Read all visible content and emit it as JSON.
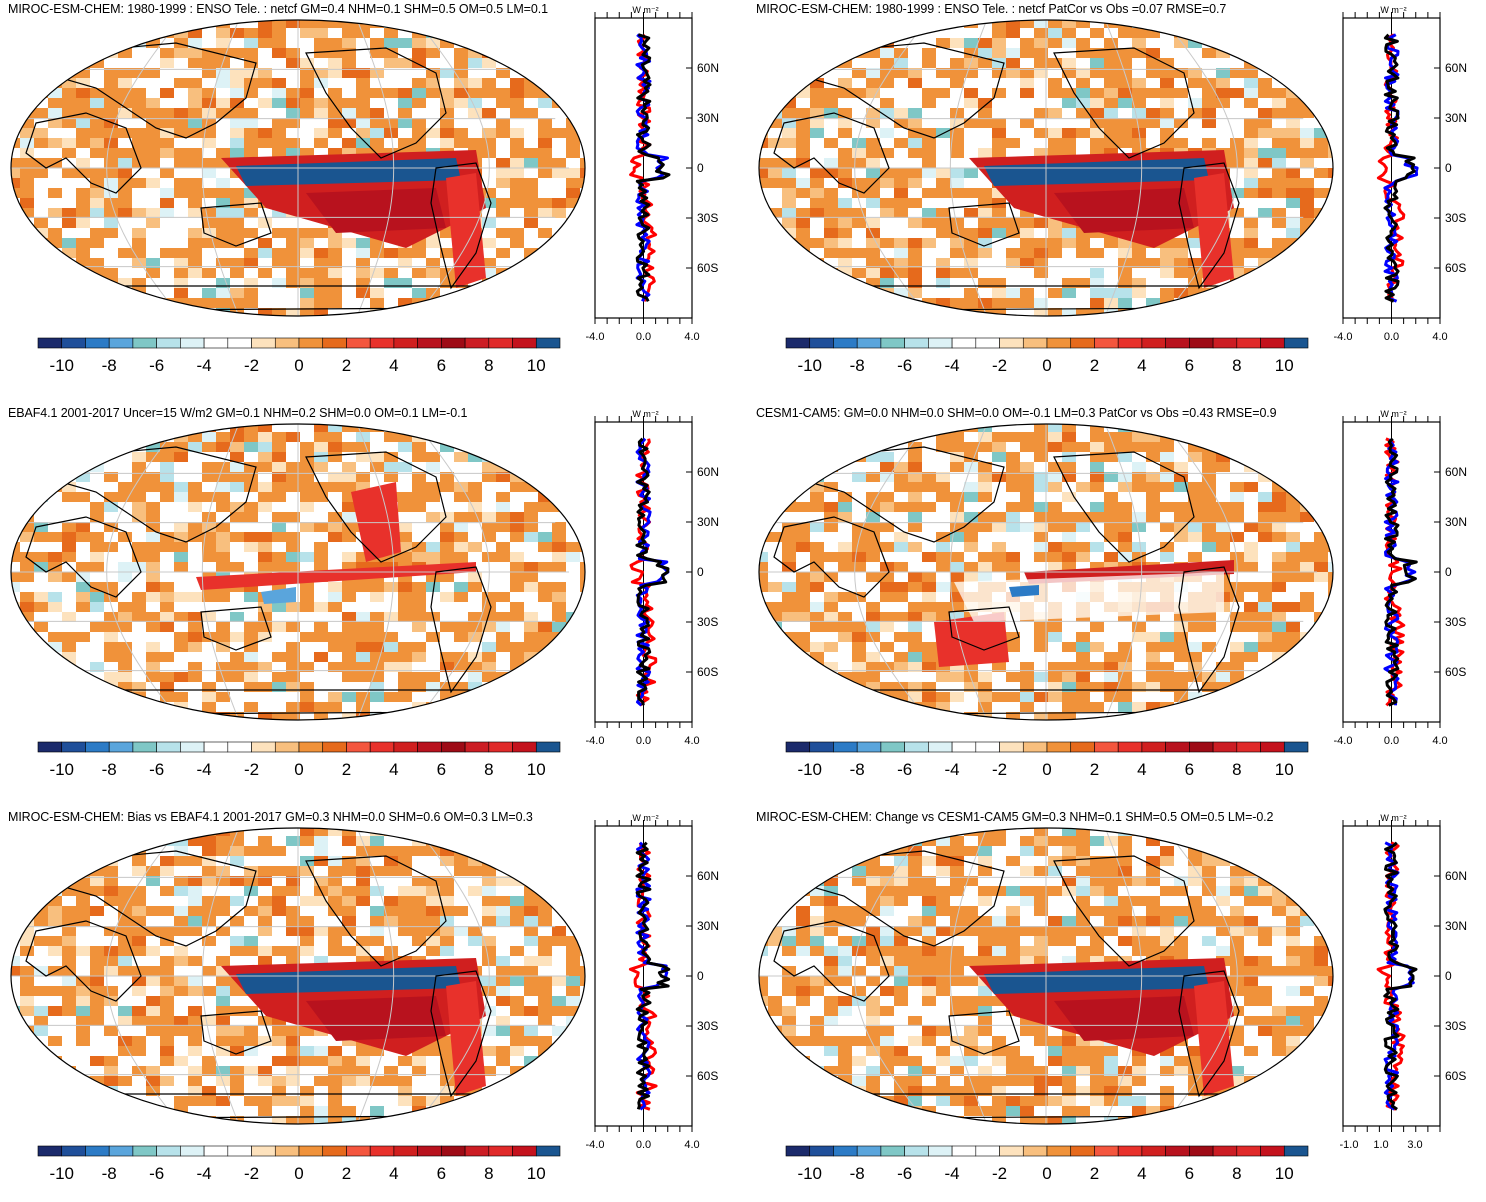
{
  "colorbar": {
    "labels": [
      "-10",
      "-8",
      "-6",
      "-4",
      "-2",
      "0",
      "2",
      "4",
      "6",
      "8",
      "10"
    ],
    "colors": [
      "#1b2a6b",
      "#1f4f9a",
      "#2c7bc6",
      "#5aa5dc",
      "#7fc7c6",
      "#b7e2ea",
      "#ddf2f6",
      "#ffffff",
      "#ffffff",
      "#fde2bd",
      "#f8bf7e",
      "#f0923a",
      "#e66a1c",
      "#f4563e",
      "#e8312b",
      "#d01f1f",
      "#b8121e",
      "#9e0b16",
      "#cc1d24",
      "#e02a2a",
      "#c4121d",
      "#1a5590"
    ]
  },
  "profile": {
    "unit": "W m⁻²",
    "lat_labels": [
      "60N",
      "30N",
      "0",
      "30S",
      "60S"
    ],
    "x_ticks_default": [
      "-4.0",
      "0.0",
      "4.0"
    ],
    "x_ticks_last": [
      "-1.0",
      "1.0",
      "3.0"
    ],
    "series_colors": [
      "#ff0000",
      "#0000ff",
      "#000000"
    ]
  },
  "map_colors": {
    "land_outline": "#000000",
    "ocean_base": "#f4a15a",
    "grid": "#c8c8c8"
  },
  "panels": [
    {
      "id": "p1",
      "title": "MIROC-ESM-CHEM: 1980-1999 : ENSO Tele. : netcf GM=0.4 NHM=0.1 SHM=0.5 OM=0.5 LM=0.1",
      "x_ticks": "default"
    },
    {
      "id": "p2",
      "title": "MIROC-ESM-CHEM: 1980-1999 : ENSO Tele. : netcf PatCor vs Obs =0.07 RMSE=0.7",
      "x_ticks": "default"
    },
    {
      "id": "p3",
      "title": "EBAF4.1 2001-2017 Uncer=15 W/m2 GM=0.1 NHM=0.2 SHM=0.0 OM=0.1 LM=-0.1",
      "x_ticks": "default"
    },
    {
      "id": "p4",
      "title": "CESM1-CAM5: GM=0.0 NHM=0.0 SHM=0.0 OM=-0.1 LM=0.3 PatCor vs Obs =0.43 RMSE=0.9",
      "x_ticks": "default"
    },
    {
      "id": "p5",
      "title": "MIROC-ESM-CHEM: Bias vs EBAF4.1 2001-2017 GM=0.3 NHM=0.0 SHM=0.6 OM=0.3 LM=0.3",
      "x_ticks": "default"
    },
    {
      "id": "p6",
      "title": "MIROC-ESM-CHEM: Change vs CESM1-CAM5 GM=0.3 NHM=0.1 SHM=0.5 OM=0.5 LM=-0.2",
      "x_ticks": "last"
    }
  ]
}
